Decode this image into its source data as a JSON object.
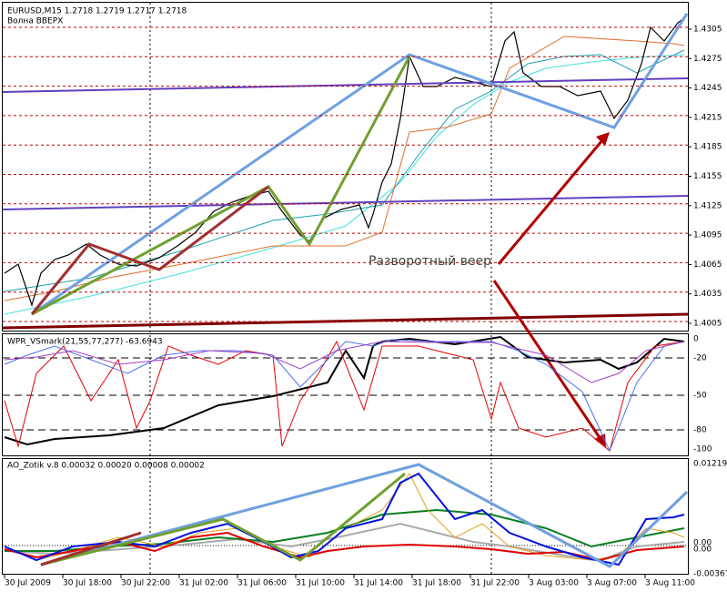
{
  "header": {
    "symbol_line": "EURUSD,M15  1.2718 1.2719 1.2717 1.2718",
    "indicator": "Волна ВВЕРХ"
  },
  "price_axis": [
    "1.4305",
    "1.4275",
    "1.4245",
    "1.4215",
    "1.4185",
    "1.4155",
    "1.4125",
    "1.4095",
    "1.4065",
    "1.4035",
    "1.4005"
  ],
  "annotation": "Разворотный веер",
  "wpr_panel": {
    "label": "WPR_VSmark(21,55,77,277) -63.6943",
    "axis": [
      "0",
      "-20",
      "-50",
      "-80",
      "-100"
    ]
  },
  "ao_panel": {
    "label": "AO_Zotik v.8 0.00032 0.00020 0.00008 0.00002",
    "axis": [
      "0.01219",
      "0.00",
      "0.00",
      "-0.00367"
    ]
  },
  "time_axis": [
    "30 Jul 2009",
    "30 Jul 18:00",
    "30 Jul 22:00",
    "31 Jul 02:00",
    "31 Jul 06:00",
    "31 Jul 10:00",
    "31 Jul 14:00",
    "31 Jul 18:00",
    "31 Jul 22:00",
    "3 Aug 03:00",
    "3 Aug 07:00",
    "3 Aug 11:00"
  ]
}
